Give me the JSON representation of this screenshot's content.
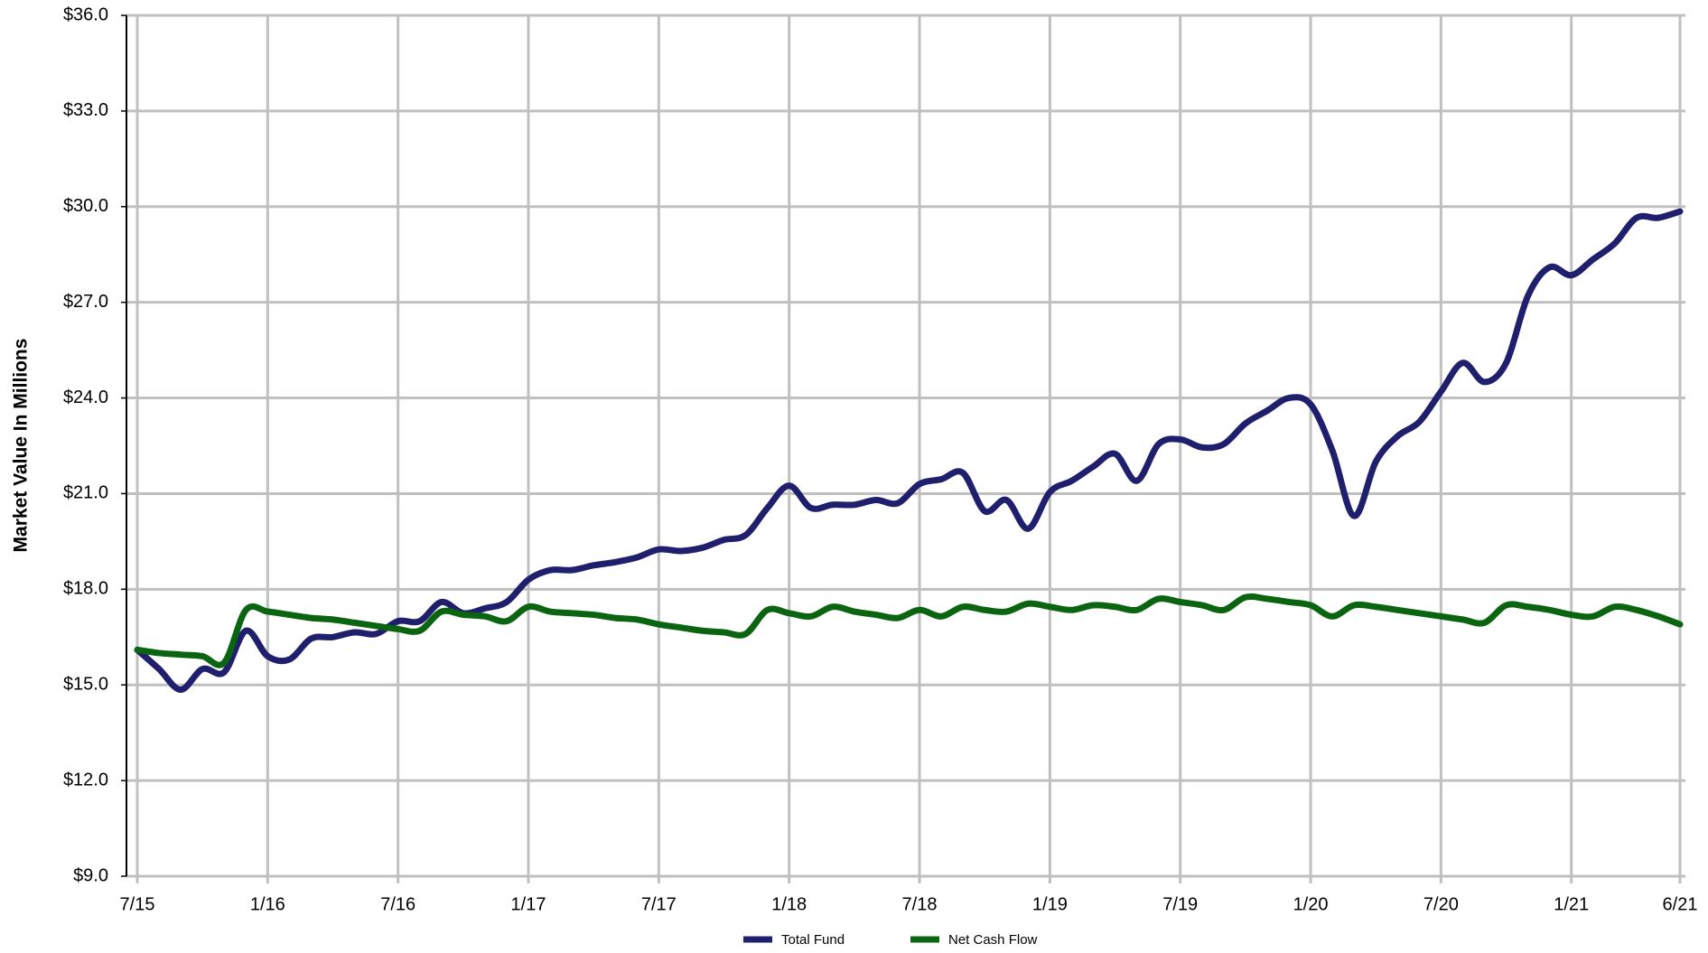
{
  "chart_data": {
    "type": "line",
    "y_label": "Market Value In Millions",
    "categories": [
      "7/15",
      null,
      null,
      null,
      null,
      null,
      "1/16",
      null,
      null,
      null,
      null,
      null,
      "7/16",
      null,
      null,
      null,
      null,
      null,
      "1/17",
      null,
      null,
      null,
      null,
      null,
      "7/17",
      null,
      null,
      null,
      null,
      null,
      "1/18",
      null,
      null,
      null,
      null,
      null,
      "7/18",
      null,
      null,
      null,
      null,
      null,
      "1/19",
      null,
      null,
      null,
      null,
      null,
      "7/19",
      null,
      null,
      null,
      null,
      null,
      "1/20",
      null,
      null,
      null,
      null,
      null,
      "7/20",
      null,
      null,
      null,
      null,
      null,
      "1/21",
      null,
      null,
      null,
      null,
      "6/21"
    ],
    "series": [
      {
        "name": "Total Fund",
        "color": "#1f1f6e",
        "values": [
          16.1,
          15.5,
          14.85,
          15.5,
          15.4,
          16.7,
          15.9,
          15.8,
          16.45,
          16.5,
          16.65,
          16.6,
          17.0,
          17.0,
          17.6,
          17.25,
          17.4,
          17.6,
          18.3,
          18.6,
          18.6,
          18.75,
          18.85,
          19.0,
          19.25,
          19.2,
          19.3,
          19.55,
          19.7,
          20.55,
          21.25,
          20.55,
          20.65,
          20.65,
          20.8,
          20.7,
          21.3,
          21.45,
          21.65,
          20.45,
          20.8,
          19.9,
          21.05,
          21.4,
          21.85,
          22.25,
          21.4,
          22.55,
          22.7,
          22.45,
          22.55,
          23.2,
          23.6,
          24.0,
          23.8,
          22.35,
          20.3,
          22.0,
          22.8,
          23.25,
          24.2,
          25.1,
          24.5,
          25.1,
          27.2,
          28.1,
          27.85,
          28.35,
          28.85,
          29.65,
          29.65,
          29.85
        ]
      },
      {
        "name": "Net Cash Flow",
        "color": "#0a6410",
        "values": [
          16.1,
          16.0,
          15.95,
          15.9,
          15.7,
          17.35,
          17.3,
          17.2,
          17.1,
          17.05,
          16.95,
          16.85,
          16.75,
          16.7,
          17.3,
          17.2,
          17.15,
          17.0,
          17.45,
          17.3,
          17.25,
          17.2,
          17.1,
          17.05,
          16.9,
          16.8,
          16.7,
          16.65,
          16.6,
          17.35,
          17.25,
          17.15,
          17.45,
          17.3,
          17.2,
          17.1,
          17.35,
          17.15,
          17.45,
          17.35,
          17.3,
          17.55,
          17.45,
          17.35,
          17.5,
          17.45,
          17.35,
          17.7,
          17.6,
          17.5,
          17.35,
          17.75,
          17.7,
          17.6,
          17.5,
          17.15,
          17.5,
          17.45,
          17.35,
          17.25,
          17.15,
          17.05,
          16.95,
          17.5,
          17.45,
          17.35,
          17.2,
          17.15,
          17.45,
          17.35,
          17.15,
          16.9
        ]
      }
    ],
    "ylim": [
      9,
      36
    ],
    "yticks": [
      {
        "value": 9,
        "label": "$9.0"
      },
      {
        "value": 12,
        "label": "$12.0"
      },
      {
        "value": 15,
        "label": "$15.0"
      },
      {
        "value": 18,
        "label": "$18.0"
      },
      {
        "value": 21,
        "label": "$21.0"
      },
      {
        "value": 24,
        "label": "$24.0"
      },
      {
        "value": 27,
        "label": "$27.0"
      },
      {
        "value": 30,
        "label": "$30.0"
      },
      {
        "value": 33,
        "label": "$33.0"
      },
      {
        "value": 36,
        "label": "$36.0"
      }
    ],
    "grid": true,
    "legend": "bottom"
  }
}
